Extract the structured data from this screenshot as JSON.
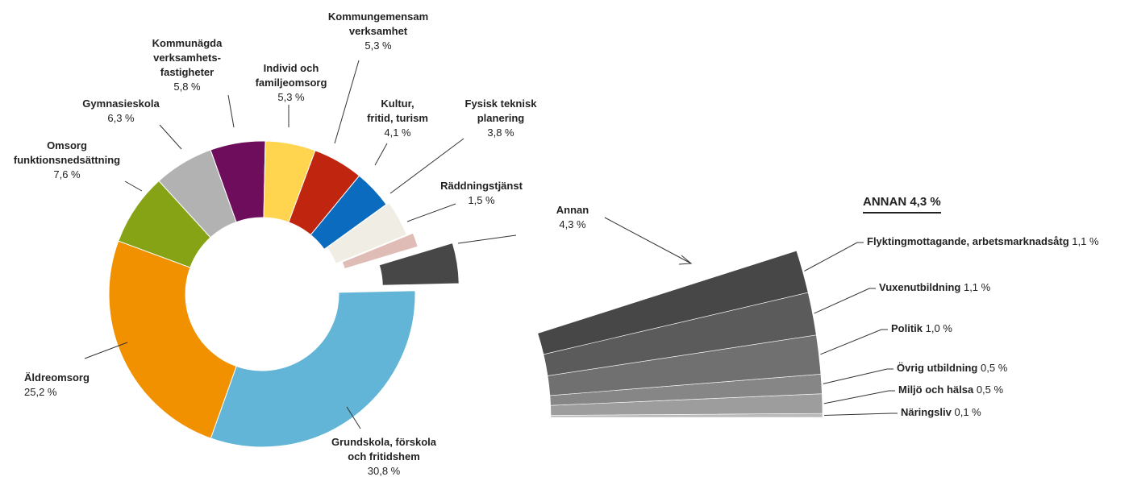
{
  "chart_data": [
    {
      "type": "donut",
      "categories": [
        "Grundskola, förskola\noch fritidshem",
        "Äldreomsorg",
        "Omsorg\nfunktionsnedsättning",
        "Gymnasieskola",
        "Kommunägda\nverksamhets-\nfastigheter",
        "Individ och\nfamiljeomsorg",
        "Kommungemensam\nverksamhet",
        "Kultur,\nfritid, turism",
        "Fysisk teknisk\nplanering",
        "Räddningstjänst",
        "Annan"
      ],
      "values": [
        30.8,
        25.2,
        7.6,
        6.3,
        5.8,
        5.3,
        5.3,
        4.1,
        3.8,
        1.5,
        4.3
      ],
      "value_labels": [
        "30,8 %",
        "25,2 %",
        "7,6 %",
        "6,3 %",
        "5,8 %",
        "5,3 %",
        "5,3 %",
        "4,1 %",
        "3,8 %",
        "1,5 %",
        "4,3 %"
      ],
      "colors": [
        "#62b5d6",
        "#f29100",
        "#86a315",
        "#b2b2b2",
        "#6e0d5b",
        "#ffd54f",
        "#c0260f",
        "#0a6bbf",
        "#f0ede4",
        "#dfbcb5",
        "#474747"
      ]
    },
    {
      "type": "sector",
      "title": "ANNAN 4,3 %",
      "categories": [
        "Flyktingmottagande, arbetsmarknadsåtg",
        "Vuxenutbildning",
        "Politik",
        "Övrig utbildning",
        "Miljö och hälsa",
        "Näringsliv"
      ],
      "values": [
        1.1,
        1.1,
        1.0,
        0.5,
        0.5,
        0.1
      ],
      "value_labels": [
        "1,1 %",
        "1,1 %",
        "1,0 %",
        "0,5 %",
        "0,5 %",
        "0,1 %"
      ],
      "colors": [
        "#474747",
        "#5b5b5b",
        "#707070",
        "#868686",
        "#9d9d9d",
        "#bababa"
      ]
    }
  ]
}
